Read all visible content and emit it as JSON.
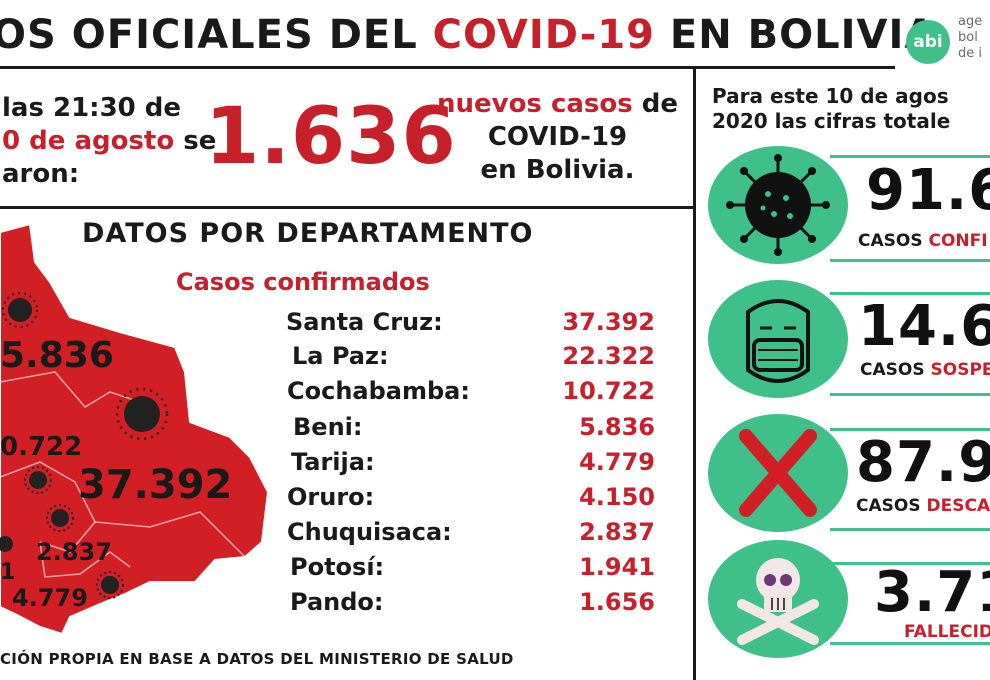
{
  "header": {
    "title_part1": "OS OFICIALES DEL ",
    "title_part2": "COVID-19",
    "title_part3": " EN BOLIVIA",
    "logo_abbr": "abi",
    "logo_line1": "age",
    "logo_line2": "bol",
    "logo_line3": "de i"
  },
  "summary": {
    "line1": "las  21:30  de",
    "line2_red": "0 de agosto",
    "line2_black": " se",
    "line3": "aron:",
    "new_cases": "1.636",
    "desc_red": "nuevos casos",
    "desc_black1": " de",
    "desc_line2": "COVID-19",
    "desc_line3": "en Bolivia."
  },
  "departments": {
    "title": "DATOS POR DEPARTAMENTO",
    "subtitle": "Casos confirmados",
    "rows": [
      {
        "name": "Santa Cruz:",
        "value": "37.392"
      },
      {
        "name": "La Paz:",
        "value": "22.322"
      },
      {
        "name": "Cochabamba:",
        "value": "10.722"
      },
      {
        "name": "Beni:",
        "value": "5.836"
      },
      {
        "name": "Tarija:",
        "value": "4.779"
      },
      {
        "name": "Oruro:",
        "value": "4.150"
      },
      {
        "name": "Chuquisaca:",
        "value": "2.837"
      },
      {
        "name": "Potosí:",
        "value": "1.941"
      },
      {
        "name": "Pando:",
        "value": "1.656"
      }
    ],
    "map_labels": {
      "beni": "5.836",
      "cochabamba": "0.722",
      "santa_cruz": "37.392",
      "chuquisaca": "2.837",
      "potosi": "1",
      "tarija": "4.779"
    }
  },
  "totals": {
    "intro_line1": "Para este 10 de agos",
    "intro_line2": "2020 las cifras totale",
    "stats": [
      {
        "number": "91.6",
        "label_black": "CASOS ",
        "label_red": "CONFI",
        "icon": "virus-icon"
      },
      {
        "number": "14.6",
        "label_black": "CASOS ",
        "label_red": "SOSPE",
        "icon": "mask-face-icon"
      },
      {
        "number": "87.9",
        "label_black": "CASOS ",
        "label_red": "DESCA",
        "icon": "cross-x-icon"
      },
      {
        "number": "3.71",
        "label_black": "",
        "label_red": "FALLECID",
        "icon": "skull-icon"
      }
    ]
  },
  "footer": {
    "text": "CIÓN PROPIA EN BASE A DATOS DEL MINISTERIO DE SALUD"
  },
  "colors": {
    "accent_red": "#c8202a",
    "accent_green": "#3fbf8a",
    "map_red": "#d21f26"
  }
}
